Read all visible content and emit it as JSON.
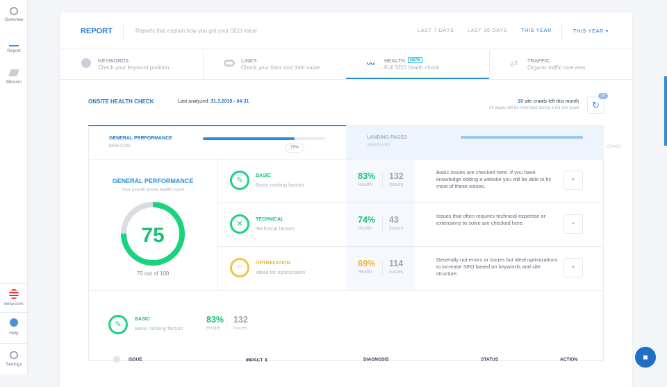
{
  "sidebar": {
    "items": [
      "Overview",
      "Report",
      "Mission"
    ],
    "bottom": [
      "bmw.com",
      "Help",
      "Settings"
    ]
  },
  "header": {
    "title": "REPORT",
    "subtitle": "Reports that explain how you got your SEO value",
    "ranges": [
      "LAST 7 DAYS",
      "LAST 30 DAYS",
      "THIS YEAR"
    ],
    "dropdown": "THIS YEAR"
  },
  "tabs": [
    {
      "title": "KEYWORDS",
      "subtitle": "Check your keyword position"
    },
    {
      "title": "LINKS",
      "subtitle": "Check your links and their value"
    },
    {
      "title": "HEALTH",
      "badge": "NEW",
      "subtitle": "Full SEO health check"
    },
    {
      "title": "TRAFFIC",
      "subtitle": "Organic traffic overview"
    }
  ],
  "check": {
    "title": "ONSITE HEALTH CHECK",
    "analyzed_label": "Last analyzed:",
    "analyzed": "31.3.2019 - 04:31",
    "crawls": "10",
    "crawls_text": "site crawls left this month",
    "crawls_note": "All pages will be refreshed during a full site crawl",
    "badge": "10"
  },
  "summary": {
    "general": {
      "title": "GENERAL PERFORMANCE",
      "site": "BMW.COM",
      "progress": "75%"
    },
    "landing": {
      "title": "LANDING PAGES",
      "issues": "288 ISSUES",
      "count": "123/483"
    }
  },
  "score": {
    "title": "GENERAL PERFORMANCE",
    "subtitle": "Your overall onsite health score",
    "value": 75,
    "caption": "75 out of 100"
  },
  "rows": [
    {
      "title": "BASIC",
      "subtitle": "Basic ranking factors",
      "health": "83%",
      "health_label": "Health",
      "issues": "132",
      "issues_label": "Issues",
      "description": "Basic issues are checked here. If you have knowledge editing a website you will be able to fix most of these issues."
    },
    {
      "title": "TECHNICAL",
      "subtitle": "Technical factors",
      "health": "74%",
      "health_label": "Health",
      "issues": "43",
      "issues_label": "Issues",
      "description": "Issues that often requires technical expertise or extensions to solve are checked here."
    },
    {
      "title": "OPTIMIZATION",
      "subtitle": "Ideas for optimization",
      "health": "69%",
      "health_label": "Health",
      "issues": "114",
      "issues_label": "Issues",
      "description": "Generally not errors or issues but ideal optimizations to increase SEO based on keywords and site structure."
    }
  ],
  "detail": {
    "title": "BASIC",
    "subtitle": "Basic ranking factors",
    "health": "83%",
    "health_label": "Health",
    "issues": "132",
    "issues_label": "Issues"
  },
  "table": {
    "headers": [
      "ISSUE",
      "IMPACT ⇕",
      "DIAGNOSIS",
      "STATUS",
      "ACTION"
    ]
  }
}
